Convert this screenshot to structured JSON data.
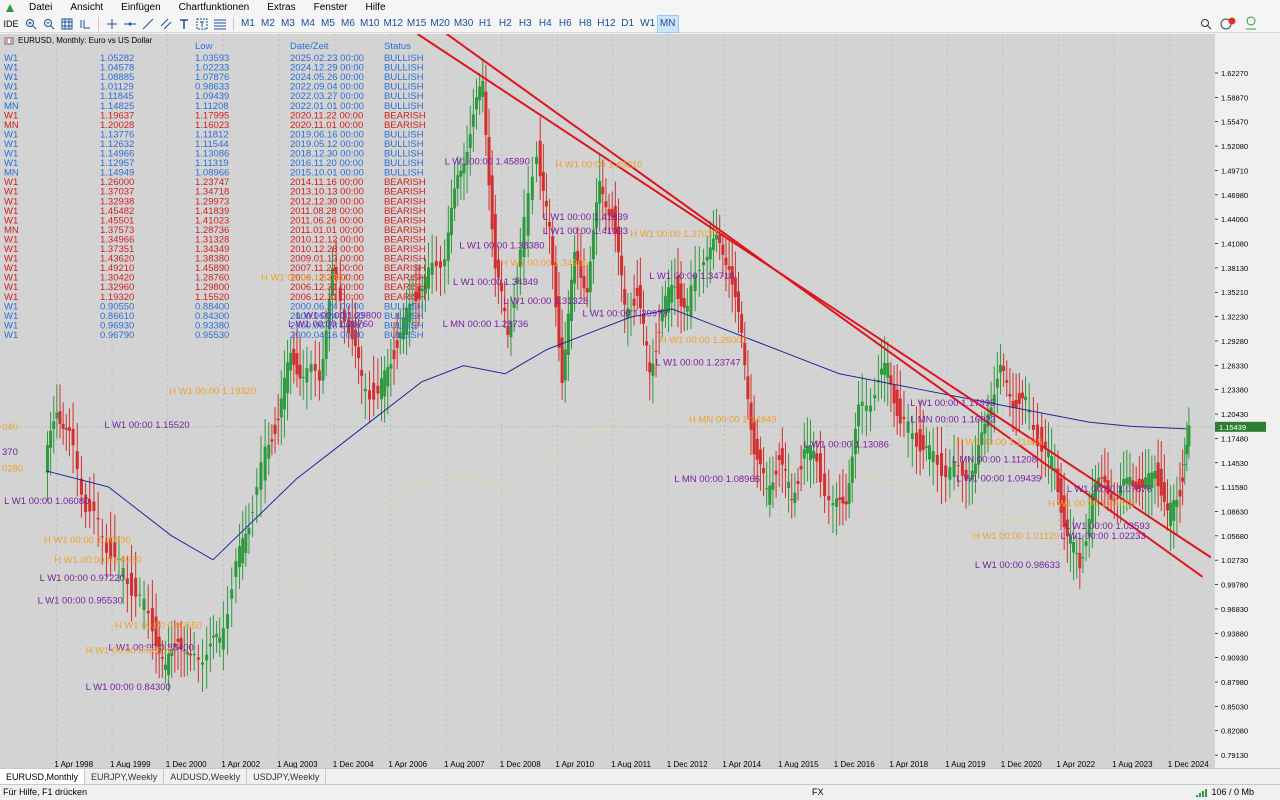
{
  "menu": [
    "Datei",
    "Ansicht",
    "Einfügen",
    "Chartfunktionen",
    "Extras",
    "Fenster",
    "Hilfe"
  ],
  "toolbar": {
    "ide_label": "IDE",
    "timeframes": [
      "M1",
      "M2",
      "M3",
      "M4",
      "M5",
      "M6",
      "M10",
      "M12",
      "M15",
      "M20",
      "M30",
      "H1",
      "H2",
      "H3",
      "H4",
      "H6",
      "H8",
      "H12",
      "D1",
      "W1",
      "MN"
    ],
    "active_timeframe": "MN"
  },
  "chart": {
    "header": "EURUSD, Monthly:  Euro vs US Dollar",
    "current_price": "1.15439",
    "left_edge_labels": [
      "040",
      "370",
      "0280"
    ]
  },
  "table": {
    "headers": [
      "",
      "",
      "Low",
      "Date/Zeit",
      "Status"
    ],
    "rows": [
      [
        "W1",
        "1.05282",
        "1.03593",
        "2025.02.23 00:00",
        "BULLISH"
      ],
      [
        "W1",
        "1.04578",
        "1.02233",
        "2024.12.29 00:00",
        "BULLISH"
      ],
      [
        "W1",
        "1.08885",
        "1.07876",
        "2024.05.26 00:00",
        "BULLISH"
      ],
      [
        "W1",
        "1.01129",
        "0.98633",
        "2022.09.04 00:00",
        "BULLISH"
      ],
      [
        "W1",
        "1.11845",
        "1.09439",
        "2022.03.27 00:00",
        "BULLISH"
      ],
      [
        "MN",
        "1.14825",
        "1.11208",
        "2022.01.01 00:00",
        "BULLISH"
      ],
      [
        "W1",
        "1.19637",
        "1.17995",
        "2020.11.22 00:00",
        "BEARISH"
      ],
      [
        "MN",
        "1.20028",
        "1.16023",
        "2020.11.01 00:00",
        "BEARISH"
      ],
      [
        "W1",
        "1.13776",
        "1.11812",
        "2019.06.16 00:00",
        "BULLISH"
      ],
      [
        "W1",
        "1.12632",
        "1.11544",
        "2019.05.12 00:00",
        "BULLISH"
      ],
      [
        "W1",
        "1.14966",
        "1.13086",
        "2018.12.30 00:00",
        "BULLISH"
      ],
      [
        "W1",
        "1.12957",
        "1.11319",
        "2016.11.20 00:00",
        "BULLISH"
      ],
      [
        "MN",
        "1.14949",
        "1.08966",
        "2015.10.01 00:00",
        "BULLISH"
      ],
      [
        "W1",
        "1.26000",
        "1.23747",
        "2014.11.16 00:00",
        "BEARISH"
      ],
      [
        "W1",
        "1.37037",
        "1.34718",
        "2013.10.13 00:00",
        "BEARISH"
      ],
      [
        "W1",
        "1.32938",
        "1.29973",
        "2012.12.30 00:00",
        "BEARISH"
      ],
      [
        "W1",
        "1.45482",
        "1.41839",
        "2011.08.28 00:00",
        "BEARISH"
      ],
      [
        "W1",
        "1.45501",
        "1.41023",
        "2011.06.26 00:00",
        "BEARISH"
      ],
      [
        "MN",
        "1.37573",
        "1.28736",
        "2011.01.01 00:00",
        "BEARISH"
      ],
      [
        "W1",
        "1.34966",
        "1.31328",
        "2010.12.12 00:00",
        "BEARISH"
      ],
      [
        "W1",
        "1.37351",
        "1.34349",
        "2010.12.28 00:00",
        "BEARISH"
      ],
      [
        "W1",
        "1.43620",
        "1.38380",
        "2009.01.13 00:00",
        "BEARISH"
      ],
      [
        "W1",
        "1.49210",
        "1.45890",
        "2007.11.21 00:00",
        "BEARISH"
      ],
      [
        "W1",
        "1.30420",
        "1.28760",
        "2006.12.31 00:00",
        "BEARISH"
      ],
      [
        "W1",
        "1.32960",
        "1.29800",
        "2006.12.31 00:00",
        "BEARISH"
      ],
      [
        "W1",
        "1.19320",
        "1.15520",
        "2006.12.31 00:00",
        "BEARISH"
      ],
      [
        "W1",
        "0.90550",
        "0.88400",
        "2000.06.24 00:00",
        "BULLISH"
      ],
      [
        "W1",
        "0.86610",
        "0.84300",
        "2000.06.24 00:00",
        "BULLISH"
      ],
      [
        "W1",
        "0.96930",
        "0.93380",
        "2000.06.18 00:00",
        "BULLISH"
      ],
      [
        "W1",
        "0.96790",
        "0.95530",
        "2000.04.16 00:00",
        "BULLISH"
      ]
    ]
  },
  "annotations": [
    {
      "text": "L W1 00:00 1.45890",
      "price": 1.4789,
      "date": 2007.55,
      "kind": "L"
    },
    {
      "text": "H W1 00:00 1.49210",
      "price": 1.475,
      "date": 2010.2,
      "kind": "H"
    },
    {
      "text": "L W1 00:00 1.41839",
      "price": 1.41,
      "date": 2009.9,
      "kind": "L"
    },
    {
      "text": "L W1 00:00 1.41023",
      "price": 1.393,
      "date": 2009.9,
      "kind": "L"
    },
    {
      "text": "H W1 00:00 1.37037",
      "price": 1.389,
      "date": 2012.0,
      "kind": "H"
    },
    {
      "text": "L W1 00:00 1.38380",
      "price": 1.375,
      "date": 2007.9,
      "kind": "L"
    },
    {
      "text": "H W1 00:00 1.34966",
      "price": 1.353,
      "date": 2008.9,
      "kind": "H"
    },
    {
      "text": "L W1 00:00 1.34718",
      "price": 1.337,
      "date": 2012.45,
      "kind": "L"
    },
    {
      "text": "H W1 00:00 1.37351",
      "price": 1.335,
      "date": 2003.15,
      "kind": "H"
    },
    {
      "text": "L W1 00:00 1.34349",
      "price": 1.33,
      "date": 2007.75,
      "kind": "L"
    },
    {
      "text": "L W1 00:00 1.31328",
      "price": 1.306,
      "date": 2008.95,
      "kind": "L"
    },
    {
      "text": "L W1 00:00 1.29973",
      "price": 1.291,
      "date": 2010.85,
      "kind": "L"
    },
    {
      "text": "L W1 00:00 1.29800",
      "price": 1.288,
      "date": 2004.0,
      "kind": "L"
    },
    {
      "text": "L MN 00:00 1.28736",
      "price": 1.278,
      "date": 2007.5,
      "kind": "L"
    },
    {
      "text": "L W1 00:00 1.28760",
      "price": 1.278,
      "date": 2003.8,
      "kind": "L"
    },
    {
      "text": "H W1 00:00 1.26000",
      "price": 1.258,
      "date": 2012.7,
      "kind": "H"
    },
    {
      "text": "L W1 00:00 1.23747",
      "price": 1.23,
      "date": 2012.6,
      "kind": "L"
    },
    {
      "text": "H W1 00:00 1.19320",
      "price": 1.195,
      "date": 2000.95,
      "kind": "H"
    },
    {
      "text": "L W1 00:00 1.15520",
      "price": 1.153,
      "date": 1999.4,
      "kind": "L"
    },
    {
      "text": "H MN 00:00 1.14949",
      "price": 1.16,
      "date": 2013.4,
      "kind": "H"
    },
    {
      "text": "L W1 00:00 1.17995",
      "price": 1.18,
      "date": 2018.7,
      "kind": "L"
    },
    {
      "text": "L MN 00:00 1.16023",
      "price": 1.16,
      "date": 2018.7,
      "kind": "L"
    },
    {
      "text": "H W1 00:00 1.11845",
      "price": 1.132,
      "date": 2019.8,
      "kind": "H"
    },
    {
      "text": "L W1 00:00 1.13086",
      "price": 1.129,
      "date": 2016.15,
      "kind": "L"
    },
    {
      "text": "L MN 00:00 1.11208",
      "price": 1.11,
      "date": 2019.7,
      "kind": "L"
    },
    {
      "text": "L W1 00:00 1.09439",
      "price": 1.087,
      "date": 2019.8,
      "kind": "L"
    },
    {
      "text": "L MN 00:00 1.08966",
      "price": 1.086,
      "date": 2013.05,
      "kind": "L"
    },
    {
      "text": "L W1 00:00 1.07876",
      "price": 1.074,
      "date": 2022.45,
      "kind": "L"
    },
    {
      "text": "H W1 00:00 1.04578",
      "price": 1.056,
      "date": 2022.0,
      "kind": "H"
    },
    {
      "text": "L W1 00:00 1.03593",
      "price": 1.028,
      "date": 2022.4,
      "kind": "L"
    },
    {
      "text": "L W1 00:00 1.02233",
      "price": 1.016,
      "date": 2022.3,
      "kind": "L"
    },
    {
      "text": "H W1 00:00 1.01129",
      "price": 1.016,
      "date": 2020.2,
      "kind": "H"
    },
    {
      "text": "L W1 00:00 0.98633",
      "price": 0.98,
      "date": 2020.25,
      "kind": "L"
    },
    {
      "text": "L W1 00:00 1.06080",
      "price": 1.059,
      "date": 1997.0,
      "kind": "L"
    },
    {
      "text": "H W1 00:00 1.00890",
      "price": 1.011,
      "date": 1997.95,
      "kind": "H"
    },
    {
      "text": "H W1 00:00 0.96930",
      "price": 0.986,
      "date": 1998.2,
      "kind": "H"
    },
    {
      "text": "L W1 00:00 0.97220",
      "price": 0.964,
      "date": 1997.85,
      "kind": "L"
    },
    {
      "text": "L W1 00:00 0.95530",
      "price": 0.936,
      "date": 1997.8,
      "kind": "L"
    },
    {
      "text": "H W1 00:00 0.90550",
      "price": 0.905,
      "date": 1999.65,
      "kind": "H"
    },
    {
      "text": "L W1 00:00 0.88400",
      "price": 0.878,
      "date": 1999.5,
      "kind": "L"
    },
    {
      "text": "H W1 00:00 0.86610",
      "price": 0.874,
      "date": 1998.95,
      "kind": "H"
    },
    {
      "text": "L W1 00:00 0.84300",
      "price": 0.829,
      "date": 1998.95,
      "kind": "L"
    }
  ],
  "axis": {
    "y_ticks": [
      "1.62270",
      "1.58870",
      "1.55470",
      "1.52080",
      "1.49710",
      "1.46980",
      "1.44060",
      "1.41080",
      "1.38130",
      "1.35210",
      "1.32230",
      "1.29280",
      "1.26330",
      "1.23380",
      "1.20430",
      "1.17480",
      "1.14530",
      "1.11580",
      "1.08630",
      "1.05680",
      "1.02730",
      "0.99780",
      "0.96830",
      "0.93880",
      "0.90930",
      "0.87980",
      "0.85030",
      "0.82080",
      "0.79130",
      "0.76180"
    ],
    "x_ticks": [
      "1 Apr 1998",
      "1 Aug 1999",
      "1 Dec 2000",
      "1 Apr 2002",
      "1 Aug 2003",
      "1 Dec 2004",
      "1 Apr 2006",
      "1 Aug 2007",
      "1 Dec 2008",
      "1 Apr 2010",
      "1 Aug 2011",
      "1 Dec 2012",
      "1 Apr 2014",
      "1 Aug 2015",
      "1 Dec 2016",
      "1 Apr 2018",
      "1 Aug 2019",
      "1 Dec 2020",
      "1 Apr 2022",
      "1 Aug 2023",
      "1 Dec 2024"
    ]
  },
  "chart_data": {
    "type": "line",
    "x_label_unit": "year",
    "price_series": [
      [
        1998.0,
        1.1
      ],
      [
        1998.3,
        1.18
      ],
      [
        1998.6,
        1.14
      ],
      [
        1999.0,
        1.06
      ],
      [
        1999.4,
        1.02
      ],
      [
        1999.8,
        0.98
      ],
      [
        2000.2,
        0.95
      ],
      [
        2000.6,
        0.91
      ],
      [
        2000.9,
        0.85
      ],
      [
        2001.2,
        0.9
      ],
      [
        2001.5,
        0.86
      ],
      [
        2001.9,
        0.88
      ],
      [
        2002.2,
        0.89
      ],
      [
        2002.6,
        0.98
      ],
      [
        2002.9,
        1.04
      ],
      [
        2003.3,
        1.12
      ],
      [
        2003.6,
        1.17
      ],
      [
        2003.9,
        1.24
      ],
      [
        2004.2,
        1.22
      ],
      [
        2004.6,
        1.22
      ],
      [
        2004.9,
        1.34
      ],
      [
        2005.3,
        1.28
      ],
      [
        2005.6,
        1.21
      ],
      [
        2006.0,
        1.19
      ],
      [
        2006.3,
        1.24
      ],
      [
        2006.6,
        1.28
      ],
      [
        2006.9,
        1.32
      ],
      [
        2007.2,
        1.34
      ],
      [
        2007.6,
        1.37
      ],
      [
        2007.9,
        1.46
      ],
      [
        2008.2,
        1.52
      ],
      [
        2008.5,
        1.58
      ],
      [
        2008.8,
        1.35
      ],
      [
        2009.1,
        1.27
      ],
      [
        2009.4,
        1.37
      ],
      [
        2009.8,
        1.5
      ],
      [
        2010.1,
        1.39
      ],
      [
        2010.4,
        1.22
      ],
      [
        2010.7,
        1.36
      ],
      [
        2011.0,
        1.33
      ],
      [
        2011.3,
        1.45
      ],
      [
        2011.6,
        1.42
      ],
      [
        2011.9,
        1.3
      ],
      [
        2012.2,
        1.32
      ],
      [
        2012.5,
        1.22
      ],
      [
        2012.8,
        1.3
      ],
      [
        2013.1,
        1.33
      ],
      [
        2013.4,
        1.3
      ],
      [
        2013.8,
        1.37
      ],
      [
        2014.1,
        1.38
      ],
      [
        2014.4,
        1.36
      ],
      [
        2014.7,
        1.26
      ],
      [
        2015.0,
        1.13
      ],
      [
        2015.3,
        1.07
      ],
      [
        2015.6,
        1.12
      ],
      [
        2015.9,
        1.06
      ],
      [
        2016.2,
        1.13
      ],
      [
        2016.5,
        1.11
      ],
      [
        2016.9,
        1.05
      ],
      [
        2017.2,
        1.07
      ],
      [
        2017.5,
        1.17
      ],
      [
        2017.9,
        1.2
      ],
      [
        2018.2,
        1.23
      ],
      [
        2018.5,
        1.16
      ],
      [
        2018.9,
        1.14
      ],
      [
        2019.2,
        1.12
      ],
      [
        2019.6,
        1.1
      ],
      [
        2020.0,
        1.1
      ],
      [
        2020.3,
        1.1
      ],
      [
        2020.6,
        1.18
      ],
      [
        2020.9,
        1.22
      ],
      [
        2021.2,
        1.19
      ],
      [
        2021.5,
        1.18
      ],
      [
        2021.9,
        1.13
      ],
      [
        2022.2,
        1.1
      ],
      [
        2022.5,
        1.02
      ],
      [
        2022.8,
        0.98
      ],
      [
        2023.1,
        1.07
      ],
      [
        2023.4,
        1.09
      ],
      [
        2023.7,
        1.06
      ],
      [
        2024.0,
        1.1
      ],
      [
        2024.3,
        1.07
      ],
      [
        2024.6,
        1.11
      ],
      [
        2024.9,
        1.04
      ],
      [
        2025.2,
        1.08
      ],
      [
        2025.4,
        1.15
      ]
    ],
    "ma_series": [
      [
        1998.0,
        1.1
      ],
      [
        1999.5,
        1.08
      ],
      [
        2001.0,
        1.02
      ],
      [
        2002.0,
        0.99
      ],
      [
        2003.0,
        1.04
      ],
      [
        2004.0,
        1.09
      ],
      [
        2005.0,
        1.13
      ],
      [
        2006.0,
        1.17
      ],
      [
        2007.0,
        1.21
      ],
      [
        2008.0,
        1.23
      ],
      [
        2009.0,
        1.22
      ],
      [
        2010.0,
        1.25
      ],
      [
        2011.0,
        1.27
      ],
      [
        2012.0,
        1.29
      ],
      [
        2013.0,
        1.3
      ],
      [
        2014.0,
        1.28
      ],
      [
        2015.0,
        1.26
      ],
      [
        2016.0,
        1.24
      ],
      [
        2017.0,
        1.22
      ],
      [
        2018.0,
        1.21
      ],
      [
        2019.0,
        1.2
      ],
      [
        2020.0,
        1.19
      ],
      [
        2021.0,
        1.18
      ],
      [
        2022.0,
        1.17
      ],
      [
        2023.0,
        1.16
      ],
      [
        2024.0,
        1.155
      ],
      [
        2025.3,
        1.152
      ]
    ],
    "trendlines": [
      {
        "from": [
          2006.9,
          1.64
        ],
        "to": [
          2025.9,
          0.993
        ]
      },
      {
        "from": [
          2007.6,
          1.64
        ],
        "to": [
          2025.7,
          0.969
        ]
      }
    ],
    "x_range": [
      1996.9,
      2026.0
    ],
    "y_range": [
      0.745,
      1.64
    ]
  }
}
